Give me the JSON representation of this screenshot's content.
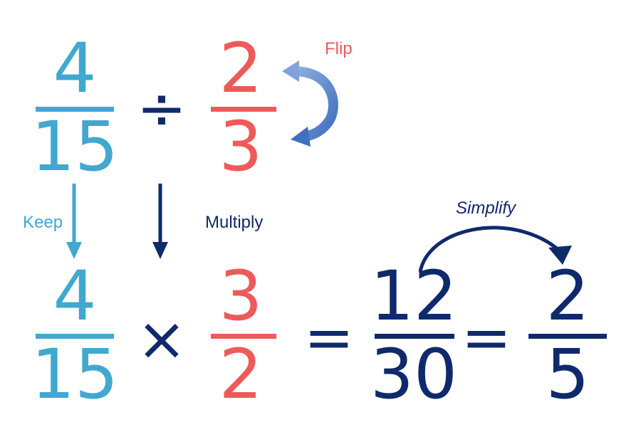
{
  "colors": {
    "light_blue": "#41A8CF",
    "dark_navy": "#0F2A6B",
    "coral_red": "#EE5A5A",
    "flip_arrow_blue": "#5B87C9"
  },
  "top_row": {
    "frac1": {
      "numerator": "4",
      "denominator": "15"
    },
    "operator": "÷",
    "frac2": {
      "numerator": "2",
      "denominator": "3"
    }
  },
  "bottom_row": {
    "frac1": {
      "numerator": "4",
      "denominator": "15"
    },
    "operator": "×",
    "frac2": {
      "numerator": "3",
      "denominator": "2"
    },
    "equals1": "=",
    "frac3": {
      "numerator": "12",
      "denominator": "30"
    },
    "equals2": "=",
    "frac4": {
      "numerator": "2",
      "denominator": "5"
    }
  },
  "labels": {
    "flip": "Flip",
    "keep": "Keep",
    "multiply": "Multiply",
    "simplify": "Simplify"
  },
  "icons": {
    "flip_arrow": "curved-arrow-icon",
    "keep_arrow": "down-arrow-icon",
    "multiply_arrow": "down-arrow-icon",
    "simplify_arrow": "curved-arrow-icon"
  }
}
